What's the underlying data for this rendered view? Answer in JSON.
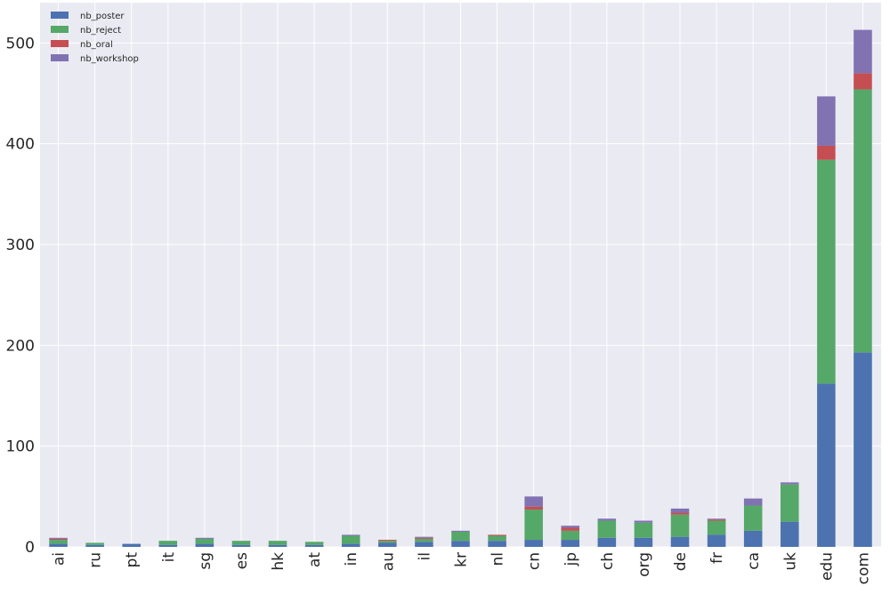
{
  "chart_data": {
    "type": "stacked_bar",
    "categories": [
      "ai",
      "ru",
      "pt",
      "it",
      "sg",
      "es",
      "hk",
      "at",
      "in",
      "au",
      "il",
      "kr",
      "nl",
      "cn",
      "jp",
      "ch",
      "org",
      "de",
      "fr",
      "ca",
      "uk",
      "edu",
      "com"
    ],
    "series": [
      {
        "name": "nb_poster",
        "color": "#4c72b0",
        "values": [
          3,
          2,
          3,
          2,
          3,
          2,
          2,
          2,
          3,
          4,
          5,
          6,
          6,
          7,
          7,
          9,
          9,
          10,
          12,
          16,
          25,
          162,
          193
        ]
      },
      {
        "name": "nb_reject",
        "color": "#55a868",
        "values": [
          4,
          2,
          0,
          4,
          5,
          4,
          4,
          3,
          8,
          2,
          3,
          9,
          5,
          30,
          9,
          17,
          15,
          22,
          14,
          25,
          37,
          222,
          261
        ]
      },
      {
        "name": "nb_oral",
        "color": "#c44e52",
        "values": [
          1,
          0,
          0,
          0,
          0,
          0,
          0,
          0,
          0,
          1,
          1,
          0,
          1,
          3,
          3,
          0,
          0,
          2,
          1,
          0,
          0,
          14,
          16
        ]
      },
      {
        "name": "nb_workshop",
        "color": "#8172b2",
        "values": [
          1,
          0,
          0,
          0,
          1,
          0,
          0,
          0,
          1,
          0,
          1,
          1,
          0,
          10,
          2,
          2,
          2,
          4,
          1,
          7,
          2,
          49,
          43
        ]
      }
    ],
    "ylim": [
      0,
      540
    ],
    "yticks": [
      0,
      100,
      200,
      300,
      400,
      500
    ],
    "grid": true,
    "legend": "upper-left"
  }
}
